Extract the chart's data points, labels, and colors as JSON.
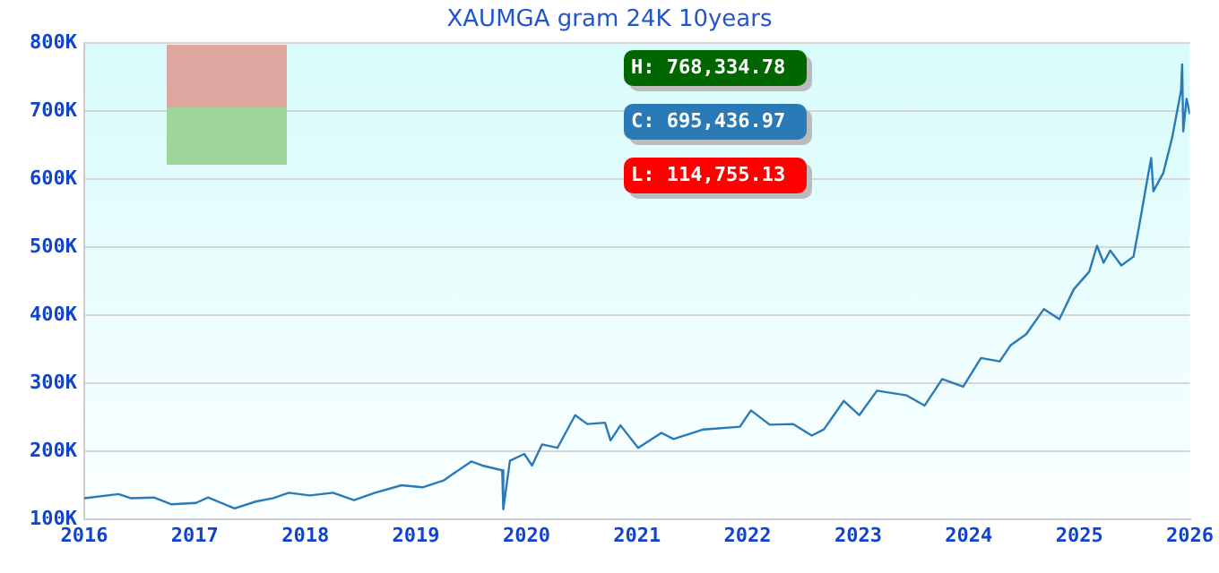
{
  "chart_data": {
    "type": "line",
    "title": "XAUMGA gram 24K 10years",
    "x": [
      2016.0,
      2016.31,
      2016.42,
      2016.63,
      2016.79,
      2017.01,
      2017.12,
      2017.36,
      2017.55,
      2017.71,
      2017.85,
      2018.04,
      2018.25,
      2018.44,
      2018.63,
      2018.87,
      2019.06,
      2019.25,
      2019.33,
      2019.5,
      2019.6,
      2019.78,
      2019.79,
      2019.85,
      2019.98,
      2020.05,
      2020.14,
      2020.28,
      2020.44,
      2020.55,
      2020.71,
      2020.76,
      2020.85,
      2021.01,
      2021.22,
      2021.33,
      2021.6,
      2021.93,
      2022.03,
      2022.2,
      2022.41,
      2022.58,
      2022.69,
      2022.87,
      2023.01,
      2023.17,
      2023.44,
      2023.6,
      2023.76,
      2023.95,
      2024.11,
      2024.28,
      2024.38,
      2024.52,
      2024.68,
      2024.82,
      2024.95,
      2025.09,
      2025.16,
      2025.22,
      2025.28,
      2025.38,
      2025.49,
      2025.54,
      2025.62,
      2025.65,
      2025.67,
      2025.76,
      2025.84,
      2025.92,
      2025.93,
      2025.94,
      2025.97,
      2026.0
    ],
    "series": [
      {
        "color": "#2a7ab8",
        "values": [
          131000,
          137000,
          131000,
          132000,
          122000,
          124000,
          132000,
          116000,
          126000,
          131000,
          139000,
          135000,
          139000,
          128000,
          139000,
          150000,
          147000,
          157000,
          166000,
          185000,
          179000,
          172000,
          114755,
          186000,
          196000,
          179000,
          210000,
          205000,
          253000,
          240000,
          242000,
          216000,
          238000,
          205000,
          227000,
          218000,
          232000,
          236000,
          260000,
          239000,
          240000,
          223000,
          232000,
          274000,
          253000,
          289000,
          282000,
          267000,
          306000,
          295000,
          337000,
          332000,
          356000,
          372000,
          409000,
          394000,
          438000,
          464000,
          502000,
          477000,
          495000,
          473000,
          486000,
          530000,
          604000,
          631000,
          582000,
          609000,
          661000,
          730000,
          768335,
          670000,
          718000,
          695437
        ]
      }
    ],
    "xlim": [
      2016,
      2026
    ],
    "xticks": [
      2016,
      2017,
      2018,
      2019,
      2020,
      2021,
      2022,
      2023,
      2024,
      2025,
      2026
    ],
    "ylim": [
      100000,
      800000
    ],
    "yticks": [
      {
        "value": 100000,
        "label": "100K"
      },
      {
        "value": 200000,
        "label": "200K"
      },
      {
        "value": 300000,
        "label": "300K"
      },
      {
        "value": 400000,
        "label": "400K"
      },
      {
        "value": 500000,
        "label": "500K"
      },
      {
        "value": 600000,
        "label": "600K"
      },
      {
        "value": 700000,
        "label": "700K"
      },
      {
        "value": 800000,
        "label": "800K"
      }
    ],
    "grid": "y",
    "legend": false,
    "marker": "none",
    "line_style": "solid",
    "annotations": [
      "H: 768,334.78",
      "C: 695,436.97",
      "L: 114,755.13"
    ]
  }
}
